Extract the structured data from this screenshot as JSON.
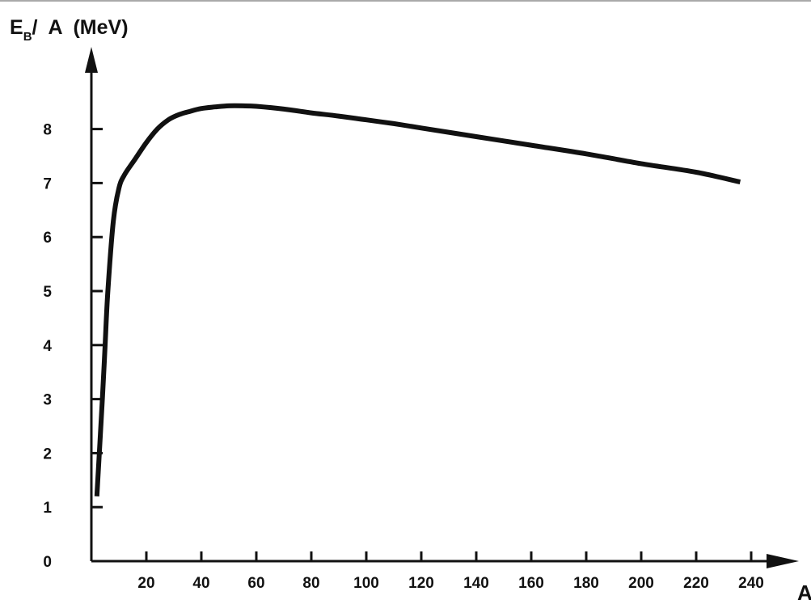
{
  "chart_data": {
    "type": "line",
    "title": "",
    "ylabel": {
      "main": "E",
      "subscript": "B",
      "rest": "/  A  (MeV)"
    },
    "xlabel": "A",
    "xlim": [
      0,
      240
    ],
    "ylim": [
      0,
      9
    ],
    "x_ticks": [
      20,
      40,
      60,
      80,
      100,
      120,
      140,
      160,
      180,
      200,
      220,
      240
    ],
    "y_ticks": [
      0,
      1,
      2,
      3,
      4,
      5,
      6,
      7,
      8
    ],
    "grid": false,
    "legend": "none",
    "colors": {
      "line": "#111111",
      "axis": "#111111"
    },
    "series": [
      {
        "x": [
          2,
          4,
          5,
          6,
          8,
          10,
          12,
          16,
          20,
          24,
          28,
          32,
          36,
          40,
          45,
          50,
          55,
          60,
          70,
          80,
          90,
          100,
          110,
          120,
          140,
          160,
          180,
          200,
          220,
          236
        ],
        "y": [
          1.2,
          3.0,
          4.0,
          5.0,
          6.3,
          6.9,
          7.15,
          7.45,
          7.75,
          8.0,
          8.17,
          8.27,
          8.33,
          8.38,
          8.41,
          8.43,
          8.43,
          8.42,
          8.37,
          8.3,
          8.24,
          8.17,
          8.1,
          8.02,
          7.86,
          7.7,
          7.54,
          7.36,
          7.2,
          7.02
        ]
      }
    ]
  }
}
